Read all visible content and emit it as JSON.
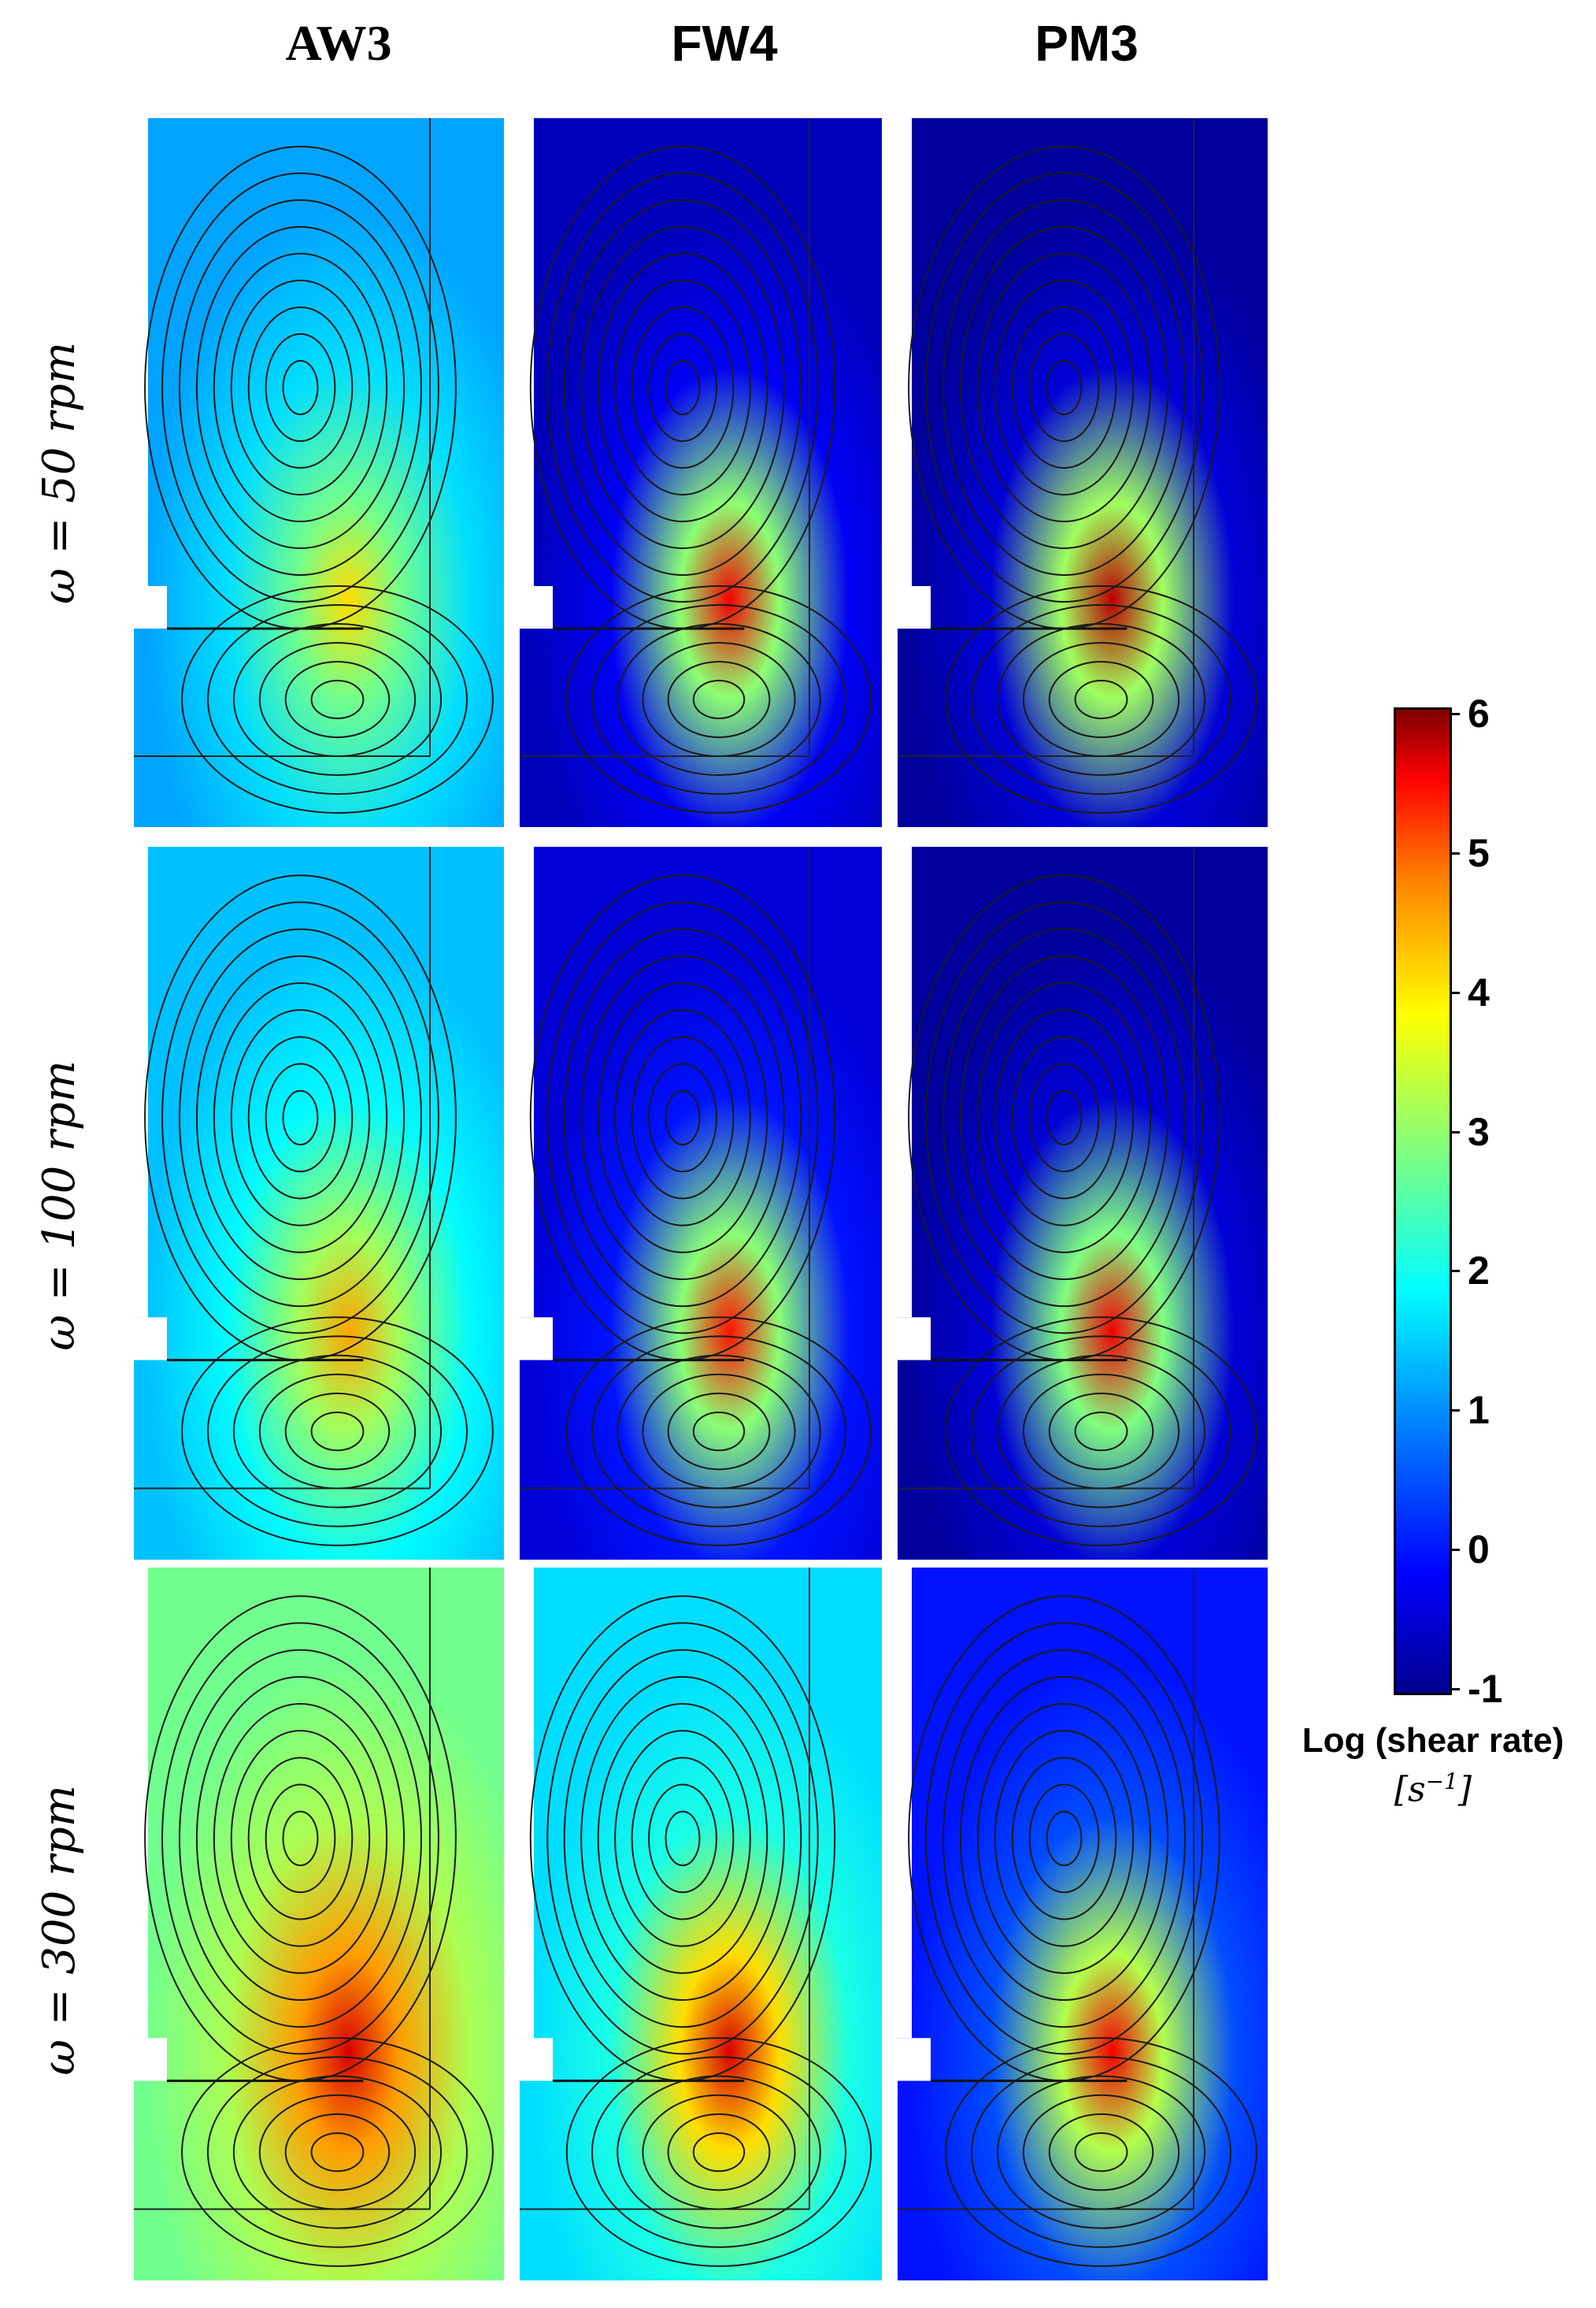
{
  "columns": [
    "AW3",
    "FW4",
    "PM3"
  ],
  "rows": [
    {
      "label": "ω = 50 rpm"
    },
    {
      "label": "ω = 100 rpm"
    },
    {
      "label": "ω = 300 rpm"
    }
  ],
  "colorbar": {
    "title": "Log (shear rate)",
    "unit_base": "[s",
    "unit_exp": "−1",
    "unit_close": "]",
    "ticks": [
      "6",
      "5",
      "4",
      "3",
      "2",
      "1",
      "0",
      "-1"
    ],
    "range": [
      -1,
      6
    ],
    "colormap": "jet"
  },
  "panels": [
    {
      "row": 0,
      "col": 0,
      "impeller": "AW3",
      "speed_rpm": 50,
      "level": 1.0,
      "hot": 3.6
    },
    {
      "row": 0,
      "col": 1,
      "impeller": "FW4",
      "speed_rpm": 50,
      "level": -0.6,
      "hot": 5.2
    },
    {
      "row": 0,
      "col": 2,
      "impeller": "PM3",
      "speed_rpm": 50,
      "level": -0.8,
      "hot": 5.6
    },
    {
      "row": 1,
      "col": 0,
      "impeller": "AW3",
      "speed_rpm": 100,
      "level": 1.2,
      "hot": 4.0
    },
    {
      "row": 1,
      "col": 1,
      "impeller": "FW4",
      "speed_rpm": 100,
      "level": -0.4,
      "hot": 5.0
    },
    {
      "row": 1,
      "col": 2,
      "impeller": "PM3",
      "speed_rpm": 100,
      "level": -0.8,
      "hot": 5.2
    },
    {
      "row": 2,
      "col": 0,
      "impeller": "AW3",
      "speed_rpm": 300,
      "level": 2.4,
      "hot": 5.4
    },
    {
      "row": 2,
      "col": 1,
      "impeller": "FW4",
      "speed_rpm": 300,
      "level": 1.4,
      "hot": 5.4
    },
    {
      "row": 2,
      "col": 2,
      "impeller": "PM3",
      "speed_rpm": 300,
      "level": 0.0,
      "hot": 5.2
    }
  ]
}
